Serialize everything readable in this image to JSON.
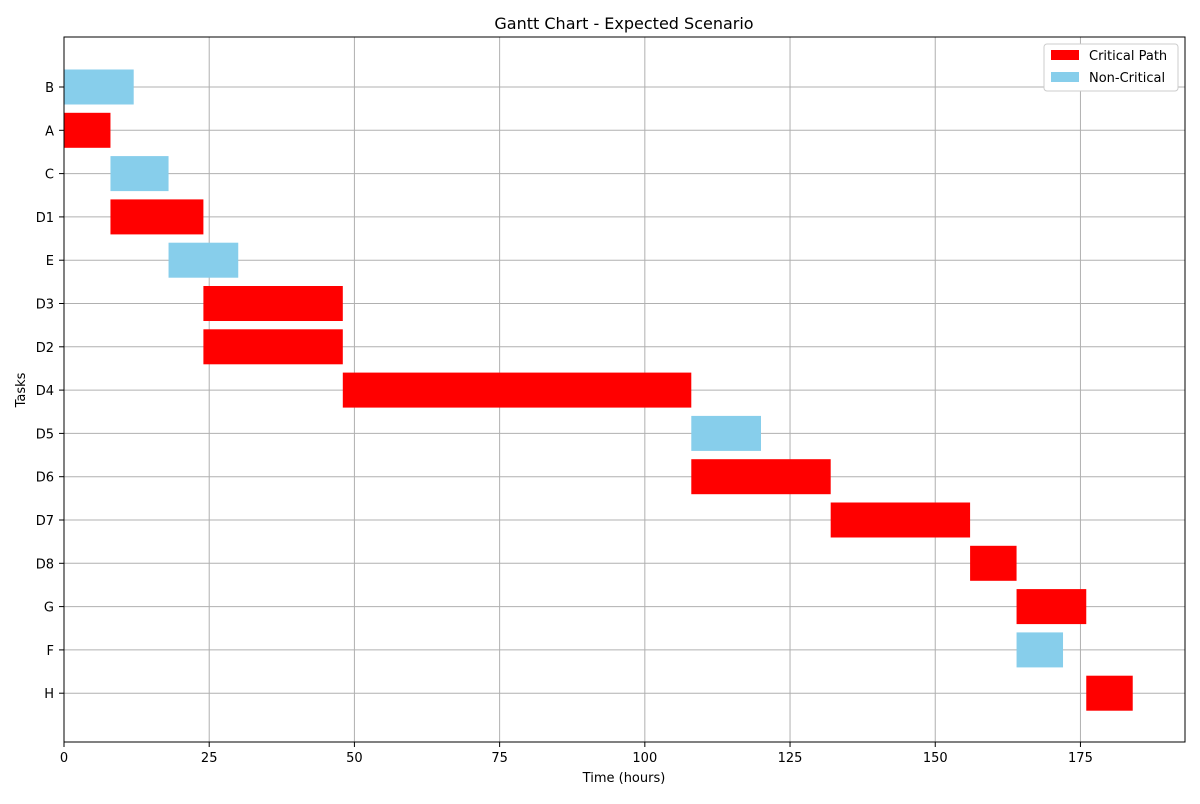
{
  "chart_data": {
    "type": "gantt",
    "title": "Gantt Chart - Expected Scenario",
    "xlabel": "Time (hours)",
    "ylabel": "Tasks",
    "xlim": [
      0,
      193
    ],
    "xticks": [
      0,
      25,
      50,
      75,
      100,
      125,
      150,
      175
    ],
    "grid": true,
    "legend_position": "top-right",
    "legend": [
      {
        "label": "Critical Path",
        "color": "#ff0000"
      },
      {
        "label": "Non-Critical",
        "color": "#87ceeb"
      }
    ],
    "tasks": [
      {
        "name": "B",
        "start": 0,
        "end": 12,
        "critical": false
      },
      {
        "name": "A",
        "start": 0,
        "end": 8,
        "critical": true
      },
      {
        "name": "C",
        "start": 8,
        "end": 18,
        "critical": false
      },
      {
        "name": "D1",
        "start": 8,
        "end": 24,
        "critical": true
      },
      {
        "name": "E",
        "start": 18,
        "end": 30,
        "critical": false
      },
      {
        "name": "D3",
        "start": 24,
        "end": 48,
        "critical": true
      },
      {
        "name": "D2",
        "start": 24,
        "end": 48,
        "critical": true
      },
      {
        "name": "D4",
        "start": 48,
        "end": 108,
        "critical": true
      },
      {
        "name": "D5",
        "start": 108,
        "end": 120,
        "critical": false
      },
      {
        "name": "D6",
        "start": 108,
        "end": 132,
        "critical": true
      },
      {
        "name": "D7",
        "start": 132,
        "end": 156,
        "critical": true
      },
      {
        "name": "D8",
        "start": 156,
        "end": 164,
        "critical": true
      },
      {
        "name": "G",
        "start": 164,
        "end": 176,
        "critical": true
      },
      {
        "name": "F",
        "start": 164,
        "end": 172,
        "critical": false
      },
      {
        "name": "H",
        "start": 176,
        "end": 184,
        "critical": true
      }
    ]
  }
}
